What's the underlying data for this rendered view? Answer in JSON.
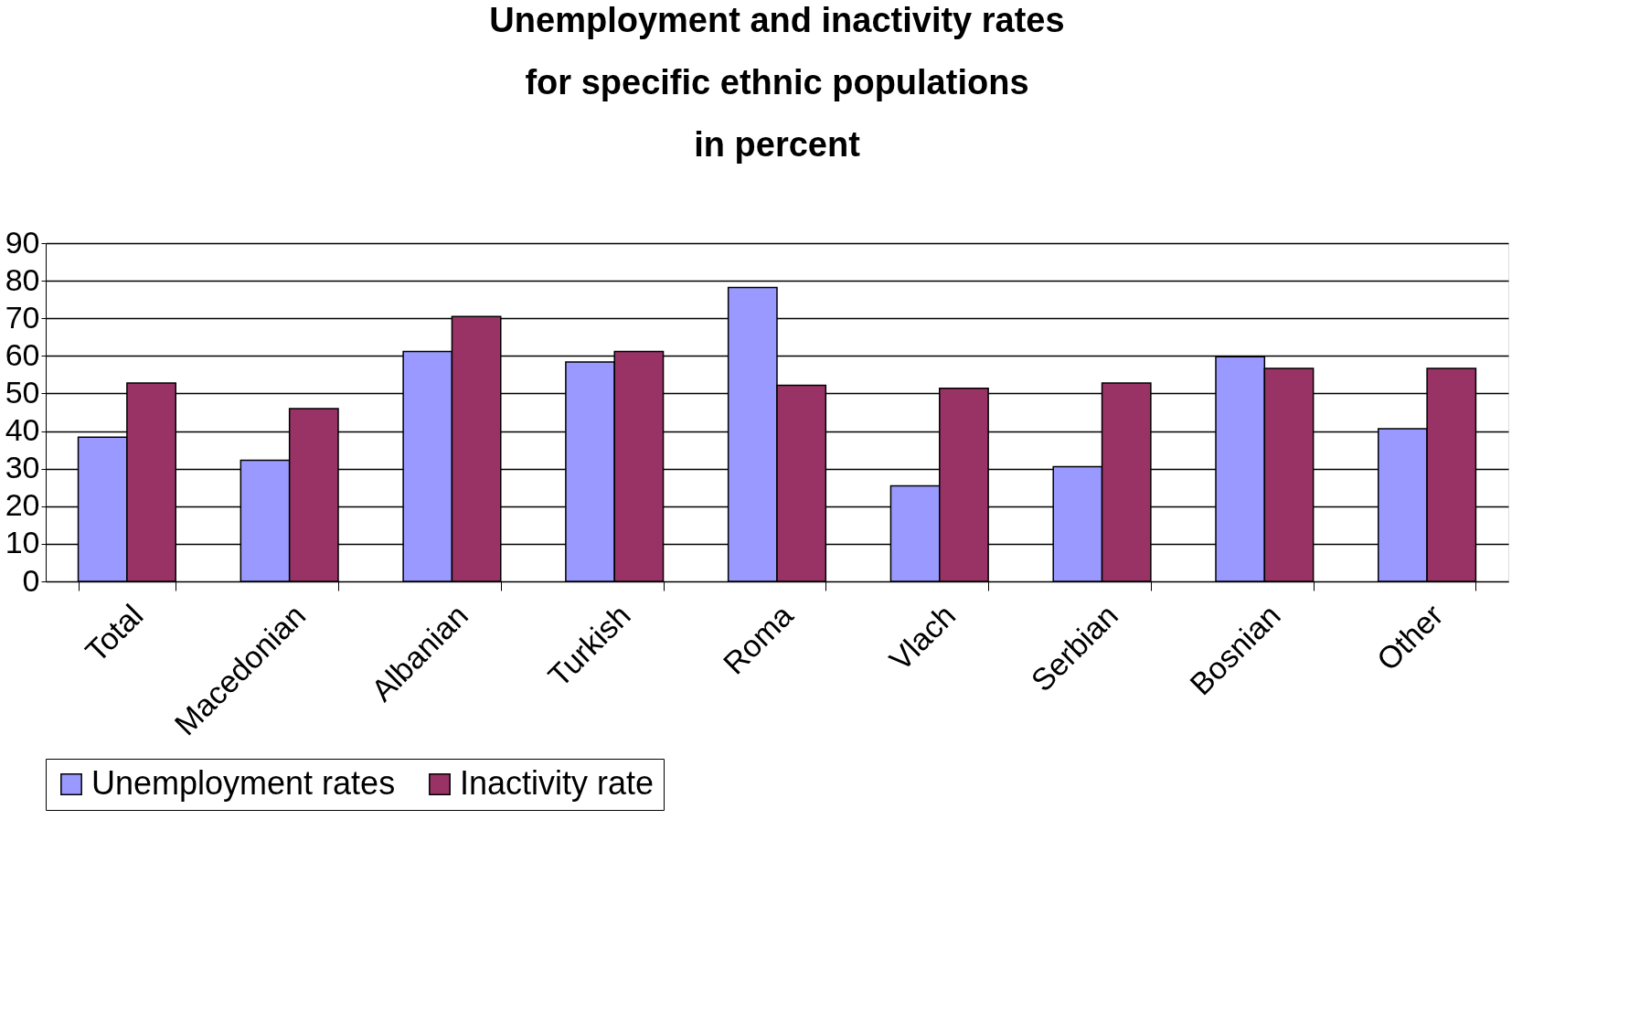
{
  "chart_data": {
    "type": "bar",
    "title": "Unemployment and inactivity rates\nfor specific ethnic populations\nin percent",
    "categories": [
      "Total",
      "Macedonian",
      "Albanian",
      "Turkish",
      "Roma",
      "Vlach",
      "Serbian",
      "Bosnian",
      "Other"
    ],
    "series": [
      {
        "name": "Unemployment rates",
        "color": "#9999ff",
        "values": [
          38.4,
          32.2,
          61.2,
          58.4,
          78.2,
          25.4,
          30.5,
          59.8,
          40.6
        ]
      },
      {
        "name": "Inactivity rate",
        "color": "#993366",
        "values": [
          52.8,
          46.0,
          70.5,
          61.2,
          52.2,
          51.4,
          52.8,
          56.7,
          56.7
        ]
      }
    ],
    "ylim": [
      0,
      90
    ],
    "yticks": [
      0,
      10,
      20,
      30,
      40,
      50,
      60,
      70,
      80,
      90
    ],
    "grid": "y",
    "legend": "bottom"
  }
}
